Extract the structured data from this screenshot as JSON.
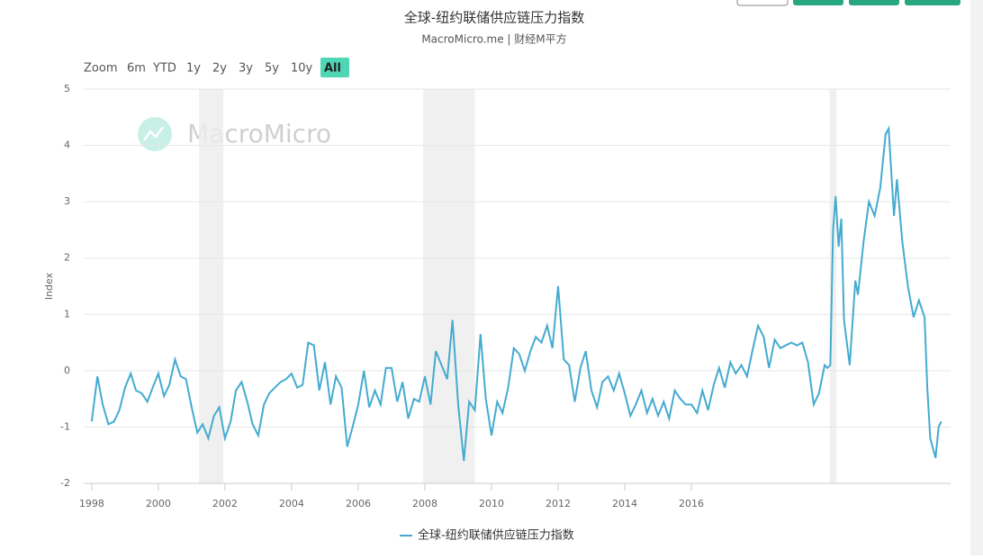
{
  "chart_data": {
    "type": "line",
    "title": "全球-纽约联储供应链压力指数",
    "subtitle": "MacroMicro.me | 财经M平方",
    "watermark": "MacroMicro",
    "range_buttons": [
      "Zoom",
      "6m",
      "YTD",
      "1y",
      "2y",
      "3y",
      "5y",
      "10y",
      "All"
    ],
    "active_button": "All",
    "y_label": "Index",
    "xlim": [
      1997.76,
      2023.78
    ],
    "xticks": [
      1998,
      2000,
      2002,
      2004,
      2006,
      2008,
      2010,
      2012,
      2014,
      2016
    ],
    "ylim": [
      -2,
      5
    ],
    "yticks": [
      -2,
      -1,
      0,
      1,
      2,
      3,
      4,
      5
    ],
    "grid": true,
    "shaded_periods": [
      [
        2001.22,
        2001.95
      ],
      [
        2007.95,
        2009.5
      ],
      [
        2020.15,
        2020.35
      ]
    ],
    "series": [
      {
        "name": "全球-纽约联储供应链压力指数",
        "color": "#44abd0",
        "x": [
          1998.0,
          1998.17,
          1998.33,
          1998.5,
          1998.67,
          1998.83,
          1999.0,
          1999.17,
          1999.33,
          1999.5,
          1999.67,
          1999.83,
          2000.0,
          2000.17,
          2000.33,
          2000.5,
          2000.67,
          2000.83,
          2001.0,
          2001.17,
          2001.33,
          2001.5,
          2001.67,
          2001.83,
          2002.0,
          2002.17,
          2002.33,
          2002.5,
          2002.67,
          2002.83,
          2003.0,
          2003.17,
          2003.33,
          2003.5,
          2003.67,
          2003.83,
          2004.0,
          2004.17,
          2004.33,
          2004.5,
          2004.67,
          2004.83,
          2005.0,
          2005.17,
          2005.33,
          2005.5,
          2005.67,
          2005.83,
          2006.0,
          2006.17,
          2006.33,
          2006.5,
          2006.67,
          2006.83,
          2007.0,
          2007.17,
          2007.33,
          2007.5,
          2007.67,
          2007.83,
          2008.0,
          2008.17,
          2008.33,
          2008.5,
          2008.67,
          2008.83,
          2009.0,
          2009.17,
          2009.33,
          2009.5,
          2009.67,
          2009.83,
          2010.0,
          2010.17,
          2010.33,
          2010.5,
          2010.67,
          2010.83,
          2011.0,
          2011.17,
          2011.33,
          2011.5,
          2011.67,
          2011.83,
          2012.0,
          2012.17,
          2012.33,
          2012.5,
          2012.67,
          2012.83,
          2013.0,
          2013.17,
          2013.33,
          2013.5,
          2013.67,
          2013.83,
          2014.0,
          2014.17,
          2014.33,
          2014.5,
          2014.67,
          2014.83,
          2015.0,
          2015.17,
          2015.33,
          2015.5,
          2015.67,
          2015.83,
          2016.0,
          2016.17,
          2016.33,
          2016.5,
          2016.67,
          2016.83,
          2017.0,
          2017.17,
          2017.33,
          2017.5,
          2017.67,
          2017.83,
          2018.0,
          2018.17,
          2018.33,
          2018.5,
          2018.67,
          2018.83,
          2019.0,
          2019.17,
          2019.33,
          2019.5,
          2019.67,
          2019.83,
          2020.0,
          2020.08,
          2020.17,
          2020.25,
          2020.33,
          2020.42,
          2020.5,
          2020.58,
          2020.75,
          2020.92,
          2021.0,
          2021.17,
          2021.33,
          2021.5,
          2021.67,
          2021.83,
          2021.92,
          2022.08,
          2022.17,
          2022.33,
          2022.5,
          2022.67,
          2022.83,
          2023.0,
          2023.08,
          2023.17,
          2023.33,
          2023.42,
          2023.5
        ],
        "values": [
          -0.9,
          -0.1,
          -0.6,
          -0.95,
          -0.9,
          -0.7,
          -0.3,
          -0.05,
          -0.35,
          -0.4,
          -0.55,
          -0.3,
          -0.05,
          -0.45,
          -0.25,
          0.2,
          -0.1,
          -0.15,
          -0.65,
          -1.1,
          -0.95,
          -1.2,
          -0.8,
          -0.65,
          -1.2,
          -0.9,
          -0.35,
          -0.2,
          -0.55,
          -0.95,
          -1.15,
          -0.6,
          -0.4,
          -0.3,
          -0.2,
          -0.15,
          -0.05,
          -0.3,
          -0.25,
          0.5,
          0.45,
          -0.35,
          0.15,
          -0.6,
          -0.1,
          -0.3,
          -1.35,
          -1.0,
          -0.6,
          0.0,
          -0.65,
          -0.35,
          -0.6,
          0.05,
          0.05,
          -0.55,
          -0.2,
          -0.85,
          -0.5,
          -0.55,
          -0.1,
          -0.6,
          0.35,
          0.1,
          -0.15,
          0.9,
          -0.6,
          -1.6,
          -0.55,
          -0.7,
          0.65,
          -0.5,
          -1.15,
          -0.55,
          -0.75,
          -0.3,
          0.4,
          0.3,
          0.0,
          0.35,
          0.6,
          0.5,
          0.8,
          0.4,
          1.5,
          0.2,
          0.1,
          -0.55,
          0.05,
          0.35,
          -0.35,
          -0.65,
          -0.2,
          -0.1,
          -0.35,
          -0.05,
          -0.4,
          -0.8,
          -0.6,
          -0.35,
          -0.75,
          -0.5,
          -0.8,
          -0.55,
          -0.85,
          -0.35,
          -0.5,
          -0.6,
          -0.6,
          -0.75,
          -0.35,
          -0.7,
          -0.25,
          0.05,
          -0.3,
          0.15,
          -0.05,
          0.1,
          -0.1,
          0.35,
          0.8,
          0.6,
          0.05,
          0.55,
          0.4,
          0.45,
          0.5,
          0.45,
          0.5,
          0.15,
          -0.6,
          -0.4,
          0.1,
          0.05,
          0.1,
          2.5,
          3.1,
          2.2,
          2.7,
          0.9,
          0.1,
          1.6,
          1.35,
          2.3,
          3.0,
          2.75,
          3.25,
          4.2,
          4.3,
          2.75,
          3.4,
          2.3,
          1.5,
          0.95,
          1.25,
          0.95,
          -0.3,
          -1.2,
          -1.55,
          -1.0,
          -0.9
        ]
      }
    ]
  }
}
